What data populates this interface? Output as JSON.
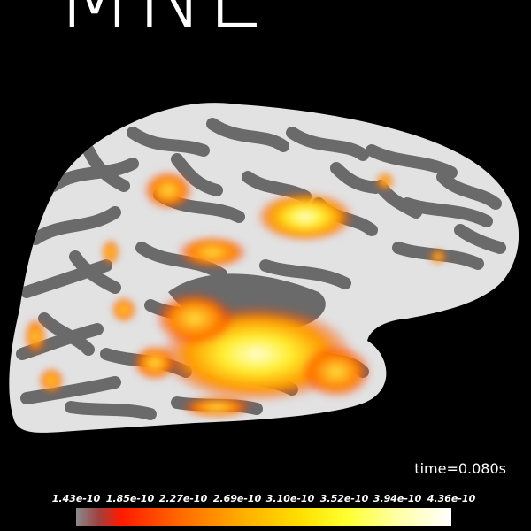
{
  "logo": {
    "text": "MNE"
  },
  "time": {
    "label": "time=0.080s"
  },
  "colorbar": {
    "ticks": [
      "1.43e-10",
      "1.85e-10",
      "2.27e-10",
      "2.69e-10",
      "3.10e-10",
      "3.52e-10",
      "3.94e-10",
      "4.36e-10"
    ]
  },
  "colors": {
    "background": "#000000",
    "sulci": "#6a6a6a",
    "gyri": "#e2e2e2",
    "activation_low": "#ff2a00",
    "activation_high": "#ffffcc"
  }
}
